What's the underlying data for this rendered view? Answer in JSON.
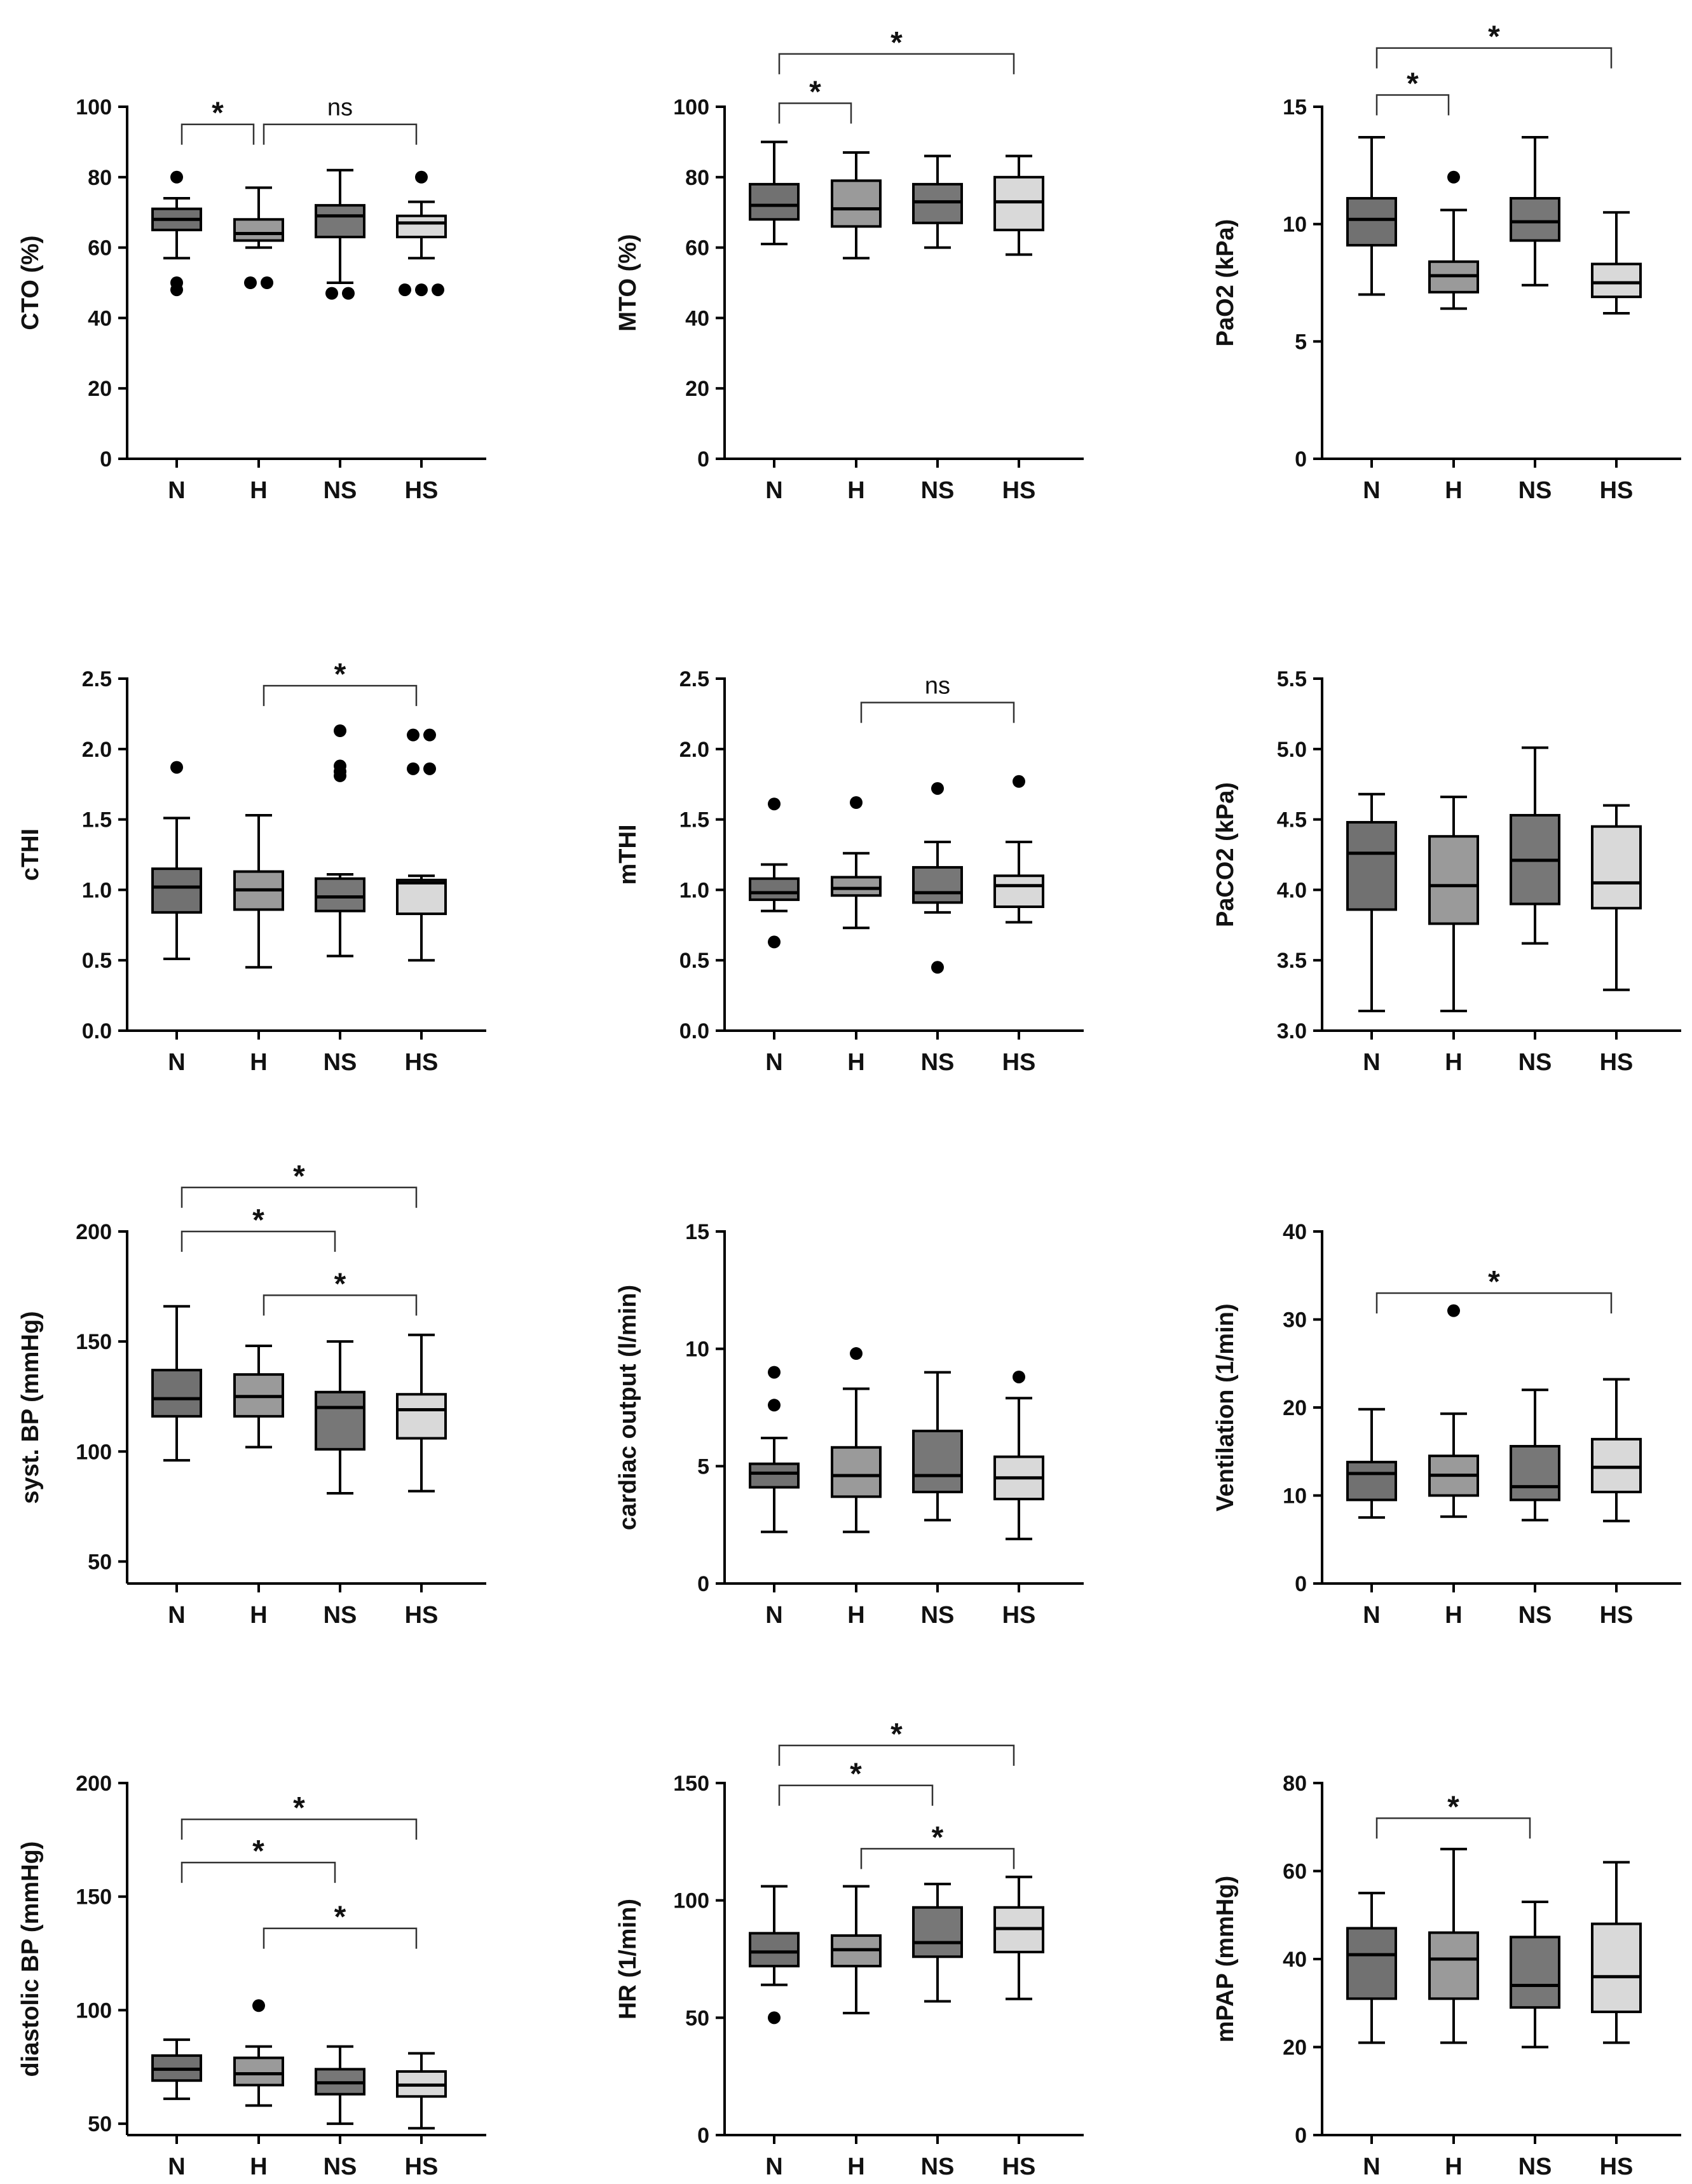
{
  "figure_title": "",
  "colors": {
    "N": "#717171",
    "H": "#9a9a9a",
    "NS": "#777777",
    "HS": "#d9d9d9",
    "line": "#000000",
    "bracket": "#333333"
  },
  "chart_data": [
    {
      "type": "box",
      "panel": "cto",
      "ylabel": "CTO (%)",
      "ylim": [
        0,
        100
      ],
      "yticks": [
        "0",
        "20",
        "40",
        "60",
        "80",
        "100"
      ],
      "categories": [
        "N",
        "H",
        "NS",
        "HS"
      ],
      "boxes": [
        {
          "min": 57,
          "q1": 65,
          "median": 68,
          "q3": 71,
          "max": 74,
          "outliers": [
            80,
            50,
            48
          ]
        },
        {
          "min": 60,
          "q1": 62,
          "median": 64,
          "q3": 68,
          "max": 77,
          "outliers": [
            50,
            50
          ]
        },
        {
          "min": 50,
          "q1": 63,
          "median": 69,
          "q3": 72,
          "max": 82,
          "outliers": [
            47,
            47
          ]
        },
        {
          "min": 57,
          "q1": 63,
          "median": 67,
          "q3": 69,
          "max": 73,
          "outliers": [
            80,
            48,
            48,
            48
          ]
        }
      ],
      "brackets": [
        {
          "from": 0,
          "to": 1,
          "label": "*",
          "y": 95
        },
        {
          "from": 1,
          "to": 3,
          "label": "ns",
          "y": 95
        }
      ]
    },
    {
      "type": "box",
      "panel": "mto",
      "ylabel": "MTO (%)",
      "ylim": [
        0,
        100
      ],
      "yticks": [
        "0",
        "20",
        "40",
        "60",
        "80",
        "100"
      ],
      "categories": [
        "N",
        "H",
        "NS",
        "HS"
      ],
      "boxes": [
        {
          "min": 61,
          "q1": 68,
          "median": 72,
          "q3": 78,
          "max": 90,
          "outliers": []
        },
        {
          "min": 57,
          "q1": 66,
          "median": 71,
          "q3": 79,
          "max": 87,
          "outliers": []
        },
        {
          "min": 60,
          "q1": 67,
          "median": 73,
          "q3": 78,
          "max": 86,
          "outliers": []
        },
        {
          "min": 58,
          "q1": 65,
          "median": 73,
          "q3": 80,
          "max": 86,
          "outliers": []
        }
      ],
      "brackets": [
        {
          "from": 0,
          "to": 1,
          "label": "*",
          "y": 101
        },
        {
          "from": 0,
          "to": 3,
          "label": "*",
          "y": 115
        }
      ]
    },
    {
      "type": "box",
      "panel": "pao2",
      "ylabel": "PaO2 (kPa)",
      "ylim": [
        0,
        15
      ],
      "yticks": [
        "0",
        "5",
        "10",
        "15"
      ],
      "categories": [
        "N",
        "H",
        "NS",
        "HS"
      ],
      "boxes": [
        {
          "min": 7.0,
          "q1": 9.1,
          "median": 10.2,
          "q3": 11.1,
          "max": 13.7,
          "outliers": []
        },
        {
          "min": 6.4,
          "q1": 7.1,
          "median": 7.8,
          "q3": 8.4,
          "max": 10.6,
          "outliers": [
            12.0
          ]
        },
        {
          "min": 7.4,
          "q1": 9.3,
          "median": 10.1,
          "q3": 11.1,
          "max": 13.7,
          "outliers": []
        },
        {
          "min": 6.2,
          "q1": 6.9,
          "median": 7.5,
          "q3": 8.3,
          "max": 10.5,
          "outliers": []
        }
      ],
      "brackets": [
        {
          "from": 0,
          "to": 1,
          "label": "*",
          "y": 15.5
        },
        {
          "from": 0,
          "to": 3,
          "label": "*",
          "y": 17.5
        }
      ]
    },
    {
      "type": "box",
      "panel": "cthi",
      "ylabel": "cTHI",
      "ylim": [
        0,
        2.5
      ],
      "yticks": [
        "0.0",
        "0.5",
        "1.0",
        "1.5",
        "2.0",
        "2.5"
      ],
      "categories": [
        "N",
        "H",
        "NS",
        "HS"
      ],
      "boxes": [
        {
          "min": 0.51,
          "q1": 0.84,
          "median": 1.02,
          "q3": 1.15,
          "max": 1.51,
          "outliers": [
            1.87
          ]
        },
        {
          "min": 0.45,
          "q1": 0.86,
          "median": 1.0,
          "q3": 1.13,
          "max": 1.53,
          "outliers": []
        },
        {
          "min": 0.53,
          "q1": 0.85,
          "median": 0.95,
          "q3": 1.08,
          "max": 1.11,
          "outliers": [
            2.13,
            1.88,
            1.84,
            1.81
          ]
        },
        {
          "min": 0.5,
          "q1": 0.83,
          "median": 1.05,
          "q3": 1.07,
          "max": 1.1,
          "outliers": [
            2.1,
            2.1,
            1.86,
            1.86
          ]
        }
      ],
      "brackets": [
        {
          "from": 1,
          "to": 3,
          "label": "*",
          "y": 2.45
        }
      ]
    },
    {
      "type": "box",
      "panel": "mthi",
      "ylabel": "mTHI",
      "ylim": [
        0,
        2.5
      ],
      "yticks": [
        "0.0",
        "0.5",
        "1.0",
        "1.5",
        "2.0",
        "2.5"
      ],
      "categories": [
        "N",
        "H",
        "NS",
        "HS"
      ],
      "boxes": [
        {
          "min": 0.85,
          "q1": 0.93,
          "median": 0.98,
          "q3": 1.08,
          "max": 1.18,
          "outliers": [
            1.61,
            0.63
          ]
        },
        {
          "min": 0.73,
          "q1": 0.96,
          "median": 1.01,
          "q3": 1.09,
          "max": 1.26,
          "outliers": [
            1.62
          ]
        },
        {
          "min": 0.84,
          "q1": 0.91,
          "median": 0.98,
          "q3": 1.16,
          "max": 1.34,
          "outliers": [
            1.72,
            0.45
          ]
        },
        {
          "min": 0.77,
          "q1": 0.88,
          "median": 1.03,
          "q3": 1.1,
          "max": 1.34,
          "outliers": [
            1.77
          ]
        }
      ],
      "brackets": [
        {
          "from": 1,
          "to": 3,
          "label": "ns",
          "y": 2.33
        }
      ]
    },
    {
      "type": "box",
      "panel": "paco2",
      "ylabel": "PaCO2 (kPa)",
      "ylim": [
        3.0,
        5.5
      ],
      "yticks": [
        "3.0",
        "3.5",
        "4.0",
        "4.5",
        "5.0",
        "5.5"
      ],
      "categories": [
        "N",
        "H",
        "NS",
        "HS"
      ],
      "boxes": [
        {
          "min": 3.14,
          "q1": 3.86,
          "median": 4.26,
          "q3": 4.48,
          "max": 4.68,
          "outliers": []
        },
        {
          "min": 3.14,
          "q1": 3.76,
          "median": 4.03,
          "q3": 4.38,
          "max": 4.66,
          "outliers": []
        },
        {
          "min": 3.62,
          "q1": 3.9,
          "median": 4.21,
          "q3": 4.53,
          "max": 5.01,
          "outliers": []
        },
        {
          "min": 3.29,
          "q1": 3.87,
          "median": 4.05,
          "q3": 4.45,
          "max": 4.6,
          "outliers": []
        }
      ],
      "brackets": []
    },
    {
      "type": "box",
      "panel": "sbp",
      "ylabel": "syst. BP (mmHg)",
      "ylim": [
        40,
        200
      ],
      "yticks": [
        "50",
        "100",
        "150",
        "200"
      ],
      "categories": [
        "N",
        "H",
        "NS",
        "HS"
      ],
      "boxes": [
        {
          "min": 96,
          "q1": 116,
          "median": 124,
          "q3": 137,
          "max": 166,
          "outliers": []
        },
        {
          "min": 102,
          "q1": 116,
          "median": 125,
          "q3": 135,
          "max": 148,
          "outliers": []
        },
        {
          "min": 81,
          "q1": 101,
          "median": 120,
          "q3": 127,
          "max": 150,
          "outliers": []
        },
        {
          "min": 82,
          "q1": 106,
          "median": 119,
          "q3": 126,
          "max": 153,
          "outliers": []
        }
      ],
      "brackets": [
        {
          "from": 0,
          "to": 3,
          "label": "*",
          "y": 220
        },
        {
          "from": 0,
          "to": 2,
          "label": "*",
          "y": 200
        },
        {
          "from": 1,
          "to": 3,
          "label": "*",
          "y": 171
        }
      ]
    },
    {
      "type": "box",
      "panel": "co",
      "ylabel": "cardiac output (l/min)",
      "ylim": [
        0,
        15
      ],
      "yticks": [
        "0",
        "5",
        "10",
        "15"
      ],
      "categories": [
        "N",
        "H",
        "NS",
        "HS"
      ],
      "boxes": [
        {
          "min": 2.2,
          "q1": 4.1,
          "median": 4.7,
          "q3": 5.1,
          "max": 6.2,
          "outliers": [
            9.0,
            7.6
          ]
        },
        {
          "min": 2.2,
          "q1": 3.7,
          "median": 4.6,
          "q3": 5.8,
          "max": 8.3,
          "outliers": [
            9.8
          ]
        },
        {
          "min": 2.7,
          "q1": 3.9,
          "median": 4.6,
          "q3": 6.5,
          "max": 9.0,
          "outliers": []
        },
        {
          "min": 1.9,
          "q1": 3.6,
          "median": 4.5,
          "q3": 5.4,
          "max": 7.9,
          "outliers": [
            8.8
          ]
        }
      ],
      "brackets": []
    },
    {
      "type": "box",
      "panel": "vent",
      "ylabel": "Ventilation (1/min)",
      "ylim": [
        0,
        40
      ],
      "yticks": [
        "0",
        "10",
        "20",
        "30",
        "40"
      ],
      "categories": [
        "N",
        "H",
        "NS",
        "HS"
      ],
      "boxes": [
        {
          "min": 7.5,
          "q1": 9.5,
          "median": 12.5,
          "q3": 13.8,
          "max": 19.8,
          "outliers": []
        },
        {
          "min": 7.6,
          "q1": 10.0,
          "median": 12.3,
          "q3": 14.5,
          "max": 19.3,
          "outliers": [
            31.0
          ]
        },
        {
          "min": 7.2,
          "q1": 9.5,
          "median": 11.0,
          "q3": 15.6,
          "max": 22.0,
          "outliers": []
        },
        {
          "min": 7.1,
          "q1": 10.4,
          "median": 13.2,
          "q3": 16.4,
          "max": 23.2,
          "outliers": []
        }
      ],
      "brackets": [
        {
          "from": 0,
          "to": 3,
          "label": "*",
          "y": 33
        }
      ]
    },
    {
      "type": "box",
      "panel": "dbp",
      "ylabel": "diastolic BP (mmHg)",
      "ylim": [
        45,
        200
      ],
      "yticks": [
        "50",
        "100",
        "150",
        "200"
      ],
      "categories": [
        "N",
        "H",
        "NS",
        "HS"
      ],
      "boxes": [
        {
          "min": 61,
          "q1": 69,
          "median": 74,
          "q3": 80,
          "max": 87,
          "outliers": []
        },
        {
          "min": 58,
          "q1": 67,
          "median": 72,
          "q3": 79,
          "max": 84,
          "outliers": [
            102
          ]
        },
        {
          "min": 50,
          "q1": 63,
          "median": 68,
          "q3": 74,
          "max": 84,
          "outliers": []
        },
        {
          "min": 48,
          "q1": 62,
          "median": 67,
          "q3": 73,
          "max": 81,
          "outliers": []
        }
      ],
      "brackets": [
        {
          "from": 0,
          "to": 3,
          "label": "*",
          "y": 184
        },
        {
          "from": 0,
          "to": 2,
          "label": "*",
          "y": 165
        },
        {
          "from": 1,
          "to": 3,
          "label": "*",
          "y": 136
        }
      ]
    },
    {
      "type": "box",
      "panel": "hr",
      "ylabel": "HR (1/min)",
      "ylim": [
        0,
        150
      ],
      "yticks": [
        "0",
        "50",
        "100",
        "150"
      ],
      "categories": [
        "N",
        "H",
        "NS",
        "HS"
      ],
      "boxes": [
        {
          "min": 64,
          "q1": 72,
          "median": 78,
          "q3": 86,
          "max": 106,
          "outliers": [
            50
          ]
        },
        {
          "min": 52,
          "q1": 72,
          "median": 79,
          "q3": 85,
          "max": 106,
          "outliers": []
        },
        {
          "min": 57,
          "q1": 76,
          "median": 82,
          "q3": 97,
          "max": 107,
          "outliers": []
        },
        {
          "min": 58,
          "q1": 78,
          "median": 88,
          "q3": 97,
          "max": 110,
          "outliers": []
        }
      ],
      "brackets": [
        {
          "from": 0,
          "to": 3,
          "label": "*",
          "y": 166
        },
        {
          "from": 0,
          "to": 2,
          "label": "*",
          "y": 149
        },
        {
          "from": 1,
          "to": 3,
          "label": "*",
          "y": 122
        }
      ]
    },
    {
      "type": "box",
      "panel": "mpap",
      "ylabel": "mPAP (mmHg)",
      "ylim": [
        0,
        80
      ],
      "yticks": [
        "0",
        "20",
        "40",
        "60",
        "80"
      ],
      "categories": [
        "N",
        "H",
        "NS",
        "HS"
      ],
      "boxes": [
        {
          "min": 21,
          "q1": 31,
          "median": 41,
          "q3": 47,
          "max": 55,
          "outliers": []
        },
        {
          "min": 21,
          "q1": 31,
          "median": 40,
          "q3": 46,
          "max": 65,
          "outliers": []
        },
        {
          "min": 20,
          "q1": 29,
          "median": 34,
          "q3": 45,
          "max": 53,
          "outliers": []
        },
        {
          "min": 21,
          "q1": 28,
          "median": 36,
          "q3": 48,
          "max": 62,
          "outliers": []
        }
      ],
      "brackets": [
        {
          "from": 0,
          "to": 2,
          "label": "*",
          "y": 72
        }
      ]
    }
  ]
}
